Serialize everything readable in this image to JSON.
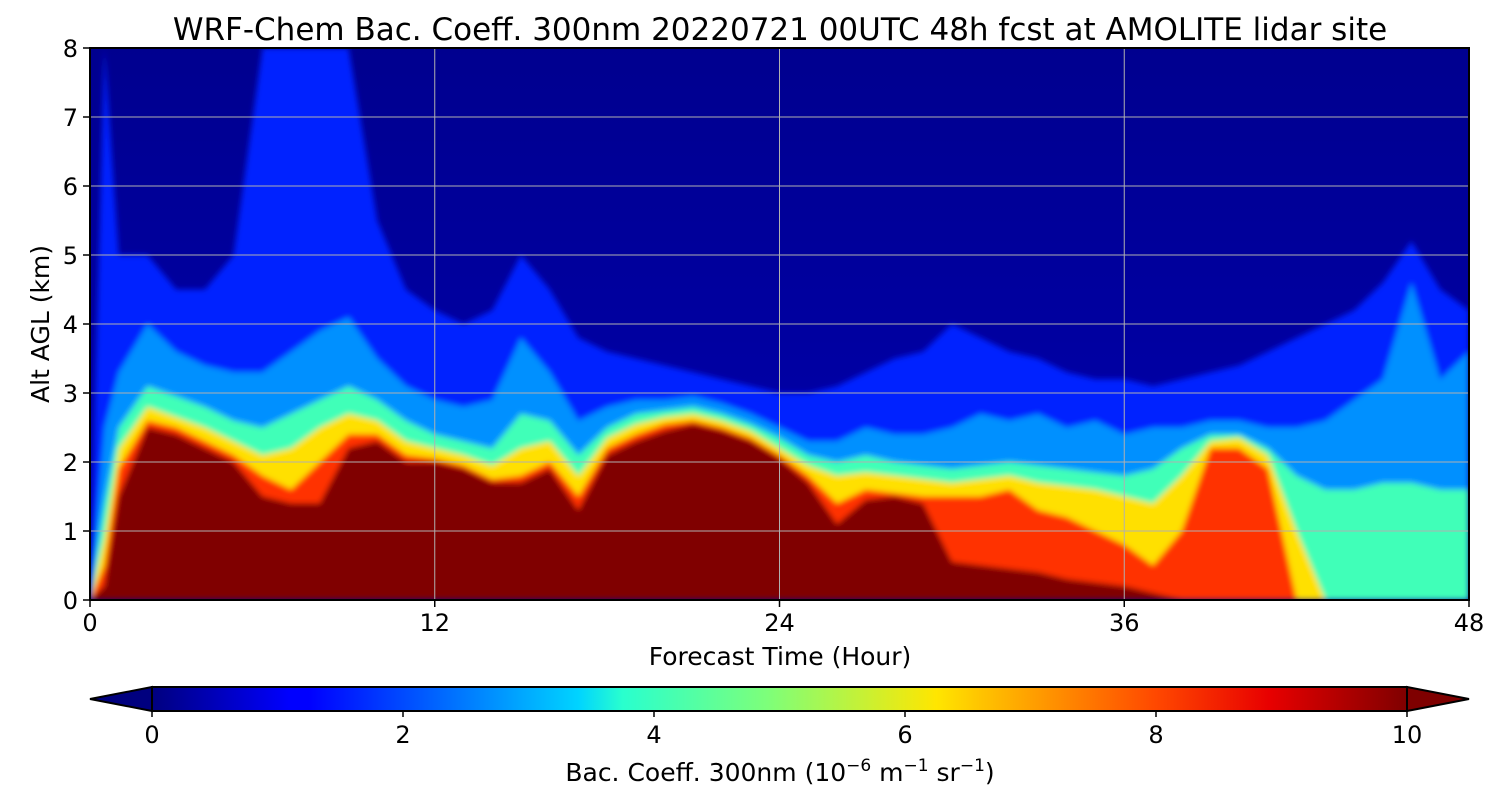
{
  "chart_data": {
    "type": "heatmap",
    "title": "WRF-Chem Bac. Coeff. 300nm  20220721 00UTC 48h fcst at AMOLITE lidar site",
    "xlabel": "Forecast Time (Hour)",
    "ylabel": "Alt AGL (km)",
    "xlim": [
      0,
      48
    ],
    "ylim": [
      0,
      8
    ],
    "xticks": [
      "0",
      "12",
      "24",
      "36",
      "48"
    ],
    "yticks": [
      "0",
      "1",
      "2",
      "3",
      "4",
      "5",
      "6",
      "7",
      "8"
    ],
    "grid": true,
    "colorbar": {
      "label_main": "Bac. Coeff. 300nm  (10",
      "label_exp1": "−6",
      "label_mid1": " m",
      "label_exp2": "−1",
      "label_mid2": " sr",
      "label_exp3": "−1",
      "label_end": ")",
      "range": [
        0,
        10
      ],
      "ticks": [
        "0",
        "2",
        "4",
        "6",
        "8",
        "10"
      ],
      "colormap": "jet",
      "extend": "both",
      "orientation": "horizontal",
      "placement": "bottom"
    },
    "hours": [
      0,
      0.5,
      1,
      2,
      3,
      4,
      5,
      6,
      7,
      8,
      9,
      10,
      11,
      12,
      13,
      14,
      15,
      16,
      17,
      18,
      19,
      20,
      21,
      22,
      23,
      24,
      25,
      26,
      27,
      28,
      29,
      30,
      31,
      32,
      33,
      34,
      35,
      36,
      37,
      38,
      39,
      40,
      41,
      42,
      43,
      44,
      45,
      46,
      47,
      48
    ],
    "layers": [
      {
        "name": "backscatter >= 10",
        "color": "#800000",
        "top_km": [
          0,
          0.2,
          1.5,
          2.5,
          2.4,
          2.2,
          2.0,
          1.5,
          1.4,
          1.4,
          2.2,
          2.3,
          2.0,
          2.0,
          1.9,
          1.7,
          1.7,
          1.9,
          1.3,
          2.1,
          2.3,
          2.45,
          2.55,
          2.45,
          2.3,
          2.05,
          1.7,
          1.1,
          1.45,
          1.5,
          1.4,
          0.55,
          0.5,
          0.45,
          0.4,
          0.3,
          0.25,
          0.2,
          0.1,
          0,
          0,
          0,
          0,
          0,
          0,
          0,
          0,
          0,
          0,
          0
        ]
      },
      {
        "name": "backscatter 8-10",
        "color": "#ff3000",
        "top_km": [
          0,
          0.5,
          1.9,
          2.6,
          2.5,
          2.3,
          2.1,
          1.8,
          1.6,
          2.0,
          2.4,
          2.4,
          2.1,
          2.05,
          1.95,
          1.75,
          1.8,
          2.0,
          1.5,
          2.2,
          2.4,
          2.55,
          2.6,
          2.5,
          2.35,
          2.1,
          1.8,
          1.4,
          1.6,
          1.55,
          1.5,
          1.5,
          1.5,
          1.6,
          1.3,
          1.2,
          1.0,
          0.8,
          0.5,
          1.0,
          2.2,
          2.2,
          1.9,
          0,
          0,
          0,
          0,
          0,
          0,
          0
        ]
      },
      {
        "name": "backscatter 6-8",
        "color": "#ffe000",
        "top_km": [
          0,
          0.9,
          2.2,
          2.8,
          2.65,
          2.5,
          2.3,
          2.1,
          2.2,
          2.5,
          2.7,
          2.6,
          2.3,
          2.2,
          2.1,
          1.95,
          2.2,
          2.3,
          1.8,
          2.35,
          2.55,
          2.65,
          2.7,
          2.6,
          2.45,
          2.2,
          1.95,
          1.8,
          1.85,
          1.8,
          1.75,
          1.7,
          1.75,
          1.8,
          1.7,
          1.65,
          1.6,
          1.5,
          1.4,
          1.8,
          2.3,
          2.35,
          2.1,
          1.0,
          0,
          0,
          0,
          0,
          0,
          0
        ]
      },
      {
        "name": "backscatter 4-6",
        "color": "#40ffb8",
        "top_km": [
          0,
          1.4,
          2.5,
          3.1,
          2.95,
          2.8,
          2.6,
          2.5,
          2.7,
          2.9,
          3.1,
          2.9,
          2.6,
          2.4,
          2.3,
          2.2,
          2.7,
          2.6,
          2.1,
          2.5,
          2.7,
          2.75,
          2.8,
          2.7,
          2.55,
          2.35,
          2.1,
          2.0,
          2.1,
          2.0,
          1.95,
          1.9,
          1.95,
          2.0,
          1.95,
          1.9,
          1.85,
          1.8,
          1.9,
          2.2,
          2.4,
          2.4,
          2.2,
          1.8,
          1.6,
          1.6,
          1.7,
          1.7,
          1.6,
          1.6
        ]
      },
      {
        "name": "backscatter 2-4",
        "color": "#0090ff",
        "top_km": [
          0,
          2.5,
          3.3,
          4.0,
          3.6,
          3.4,
          3.3,
          3.3,
          3.6,
          3.9,
          4.1,
          3.5,
          3.1,
          2.9,
          2.8,
          2.9,
          3.8,
          3.3,
          2.6,
          2.8,
          2.9,
          2.9,
          2.95,
          2.85,
          2.7,
          2.5,
          2.3,
          2.3,
          2.5,
          2.4,
          2.4,
          2.5,
          2.7,
          2.6,
          2.7,
          2.5,
          2.6,
          2.4,
          2.5,
          2.5,
          2.6,
          2.6,
          2.5,
          2.5,
          2.6,
          2.9,
          3.2,
          4.6,
          3.2,
          3.6
        ]
      },
      {
        "name": "backscatter 1-2",
        "color": "#0022ff",
        "top_km": [
          0,
          8,
          5.0,
          5.0,
          4.5,
          4.5,
          5.0,
          8,
          8,
          8,
          8,
          5.5,
          4.5,
          4.2,
          4.0,
          4.2,
          5.0,
          4.5,
          3.8,
          3.6,
          3.5,
          3.4,
          3.3,
          3.2,
          3.1,
          3.0,
          3.0,
          3.1,
          3.3,
          3.5,
          3.6,
          4.0,
          3.8,
          3.6,
          3.5,
          3.3,
          3.2,
          3.2,
          3.1,
          3.2,
          3.3,
          3.4,
          3.6,
          3.8,
          4.0,
          4.2,
          4.6,
          5.2,
          4.5,
          4.2
        ]
      }
    ]
  }
}
